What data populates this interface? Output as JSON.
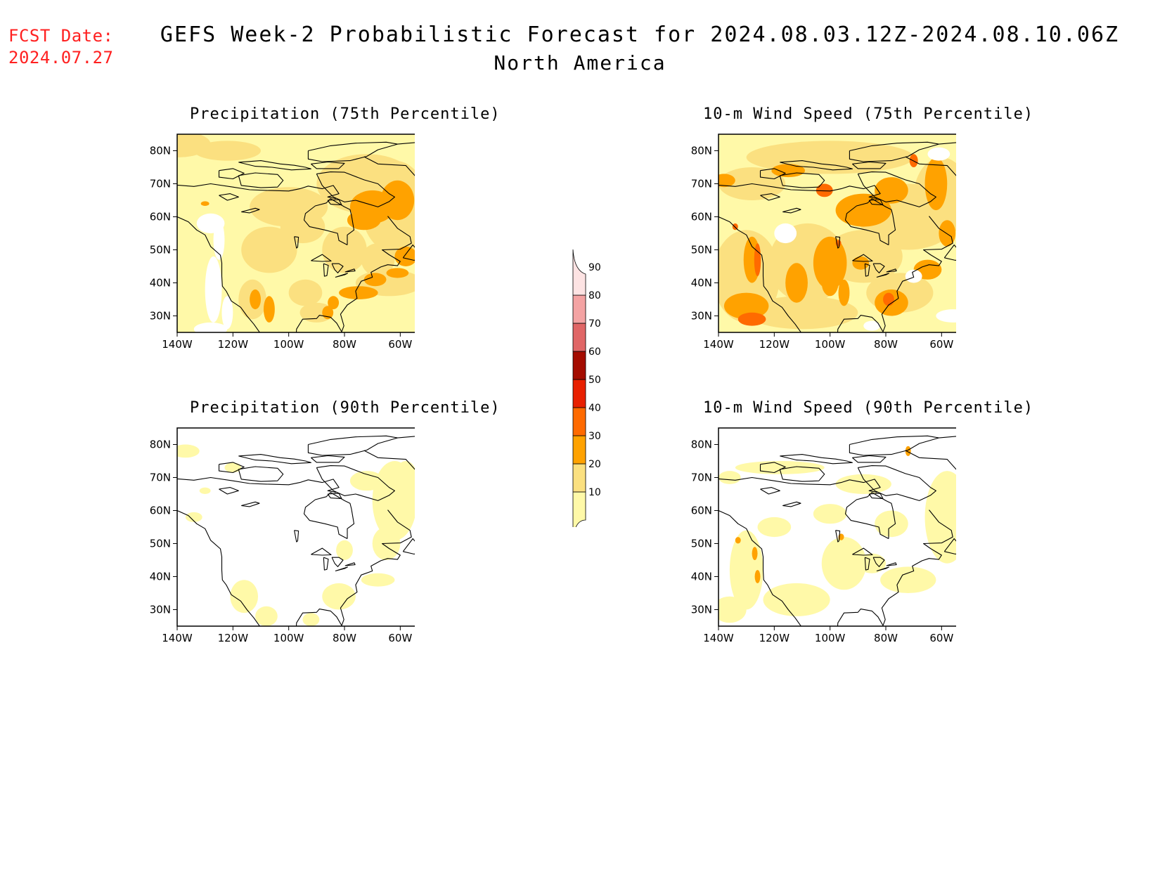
{
  "header": {
    "fcst_label": "FCST Date:",
    "fcst_date": "2024.07.27",
    "title": "GEFS Week-2 Probabilistic Forecast for 2024.08.03.12Z-2024.08.10.06Z",
    "subtitle": "North America"
  },
  "panels": [
    {
      "title": "Precipitation (75th Percentile)",
      "field": "precip75"
    },
    {
      "title": "10-m Wind Speed (75th Percentile)",
      "field": "wind75"
    },
    {
      "title": "Precipitation (90th Percentile)",
      "field": "precip90"
    },
    {
      "title": "10-m Wind Speed (90th Percentile)",
      "field": "wind90"
    }
  ],
  "axes": {
    "lat_labels": [
      "80N",
      "70N",
      "60N",
      "50N",
      "40N",
      "30N"
    ],
    "lat_values": [
      80,
      70,
      60,
      50,
      40,
      30
    ],
    "lon_labels": [
      "140W",
      "120W",
      "100W",
      "80W",
      "60W"
    ],
    "lon_values": [
      -140,
      -120,
      -100,
      -80,
      -60
    ],
    "lat_range": [
      25,
      85
    ],
    "lon_range": [
      -140,
      -50
    ]
  },
  "colorbar": {
    "levels": [
      "10",
      "20",
      "30",
      "40",
      "50",
      "60",
      "70",
      "80",
      "90"
    ],
    "colors": [
      "#fff9a8",
      "#fbe080",
      "#ffa200",
      "#ff6a00",
      "#e82000",
      "#a40c00",
      "#e06666",
      "#f4a3a3",
      "#fde3e3"
    ]
  }
}
